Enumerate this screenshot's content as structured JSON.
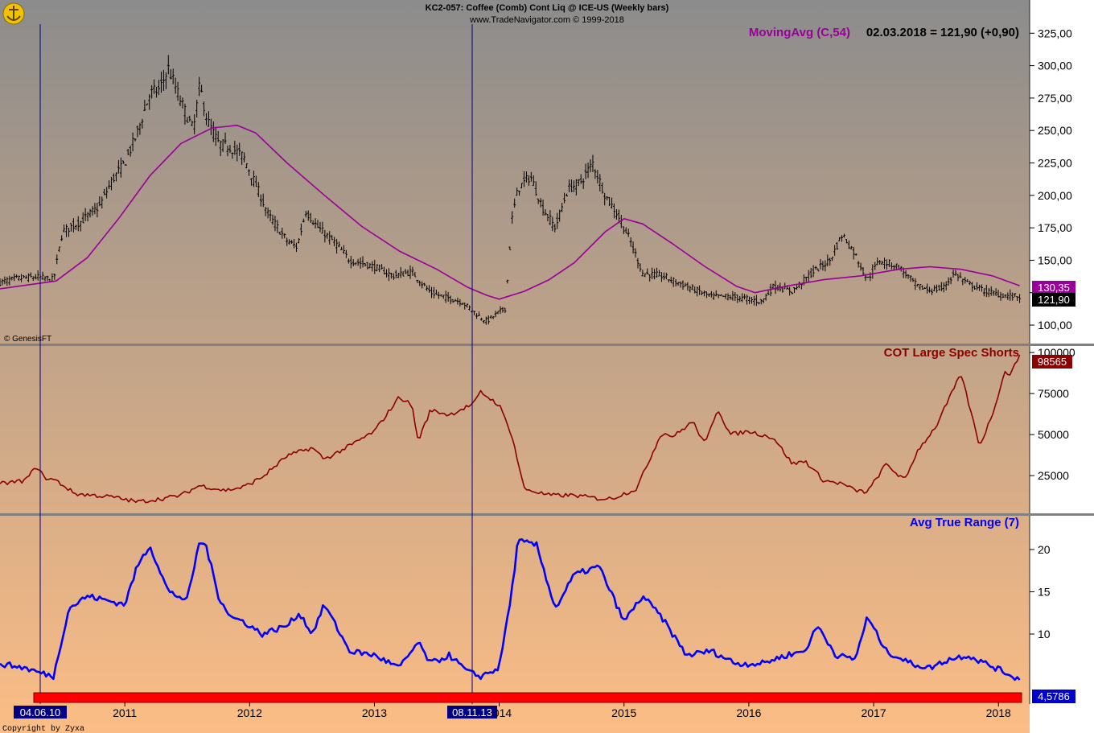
{
  "header": {
    "title": "KC2-057:  Coffee (Comb) Cont Liq @ ICE-US  (Weekly bars)",
    "subtitle": "www.TradeNavigator.com © 1999-2018",
    "credit": "© GenesisFT",
    "copyright": "Copyright by Zyxa"
  },
  "legend": {
    "ma_label": "MovingAvg (C,54)",
    "ma_value_text": "02.03.2018 = 121,90 (+0,90)",
    "cot_label": "COT Large Spec Shorts",
    "atr_label": "Avg True Range (7)"
  },
  "badges": {
    "ma_last": "130,35",
    "price_last": "121,90",
    "cot_last": "98565",
    "atr_last": "4,5786"
  },
  "markers": {
    "first_date": "04.06.10",
    "second_date": "08.11.13"
  },
  "colors": {
    "ma": "#990099",
    "cot": "#8b0000",
    "atr": "#0000ff",
    "price": "#000000",
    "marker_line": "#000080",
    "red_band": "#ff0000",
    "separator": "#808080",
    "grad_top": "#8c8c8c",
    "grad_bottom": "#fcbd85",
    "axis_bg": "#ffffff"
  },
  "chart_data": [
    {
      "type": "line",
      "title": "KC2-057:  Coffee (Comb) Cont Liq @ ICE-US  (Weekly bars)",
      "x_ticks": [
        "2011",
        "2012",
        "2013",
        "2014",
        "2015",
        "2016",
        "2017",
        "2018"
      ],
      "x_tick_years": [
        2011,
        2012,
        2013,
        2014,
        2015,
        2016,
        2017,
        2018
      ],
      "x_range": [
        2010.0,
        2018.25
      ],
      "y_ticks": [
        "100,00",
        "125,00",
        "150,00",
        "175,00",
        "200,00",
        "225,00",
        "250,00",
        "275,00",
        "300,00",
        "325,00"
      ],
      "y_tick_values": [
        100,
        125,
        150,
        175,
        200,
        225,
        250,
        275,
        300,
        325
      ],
      "ylim": [
        87,
        332
      ],
      "series": [
        {
          "name": "Coffee (Comb) Cont Liq",
          "x": [
            2010.0,
            2010.15,
            2010.3,
            2010.43,
            2010.5,
            2010.65,
            2010.8,
            2010.9,
            2011.0,
            2011.1,
            2011.2,
            2011.28,
            2011.35,
            2011.45,
            2011.55,
            2011.6,
            2011.66,
            2011.75,
            2011.85,
            2011.95,
            2012.05,
            2012.15,
            2012.3,
            2012.38,
            2012.45,
            2012.55,
            2012.7,
            2012.8,
            2013.0,
            2013.15,
            2013.3,
            2013.45,
            2013.55,
            2013.7,
            2013.85,
            2013.9,
            2014.0,
            2014.05,
            2014.1,
            2014.15,
            2014.25,
            2014.35,
            2014.45,
            2014.55,
            2014.65,
            2014.75,
            2014.85,
            2014.95,
            2015.05,
            2015.15,
            2015.3,
            2015.5,
            2015.7,
            2015.85,
            2016.0,
            2016.1,
            2016.2,
            2016.35,
            2016.5,
            2016.65,
            2016.75,
            2016.85,
            2016.95,
            2017.05,
            2017.2,
            2017.35,
            2017.45,
            2017.55,
            2017.65,
            2017.75,
            2017.9,
            2018.05,
            2018.17
          ],
          "values": [
            133,
            136,
            137,
            135,
            172,
            180,
            192,
            212,
            225,
            248,
            278,
            282,
            298,
            272,
            250,
            285,
            258,
            240,
            237,
            230,
            208,
            185,
            165,
            160,
            188,
            175,
            162,
            150,
            145,
            138,
            141,
            125,
            122,
            118,
            106,
            103,
            110,
            113,
            180,
            205,
            215,
            190,
            175,
            205,
            210,
            225,
            200,
            185,
            165,
            140,
            138,
            130,
            122,
            122,
            120,
            118,
            130,
            126,
            140,
            150,
            170,
            155,
            135,
            150,
            145,
            130,
            127,
            128,
            140,
            132,
            126,
            123,
            121.9
          ]
        },
        {
          "name": "MovingAvg (C,54)",
          "x": [
            2010.0,
            2010.3,
            2010.45,
            2010.7,
            2010.95,
            2011.2,
            2011.45,
            2011.7,
            2011.9,
            2012.05,
            2012.3,
            2012.6,
            2012.9,
            2013.2,
            2013.5,
            2013.75,
            2013.9,
            2014.0,
            2014.2,
            2014.4,
            2014.6,
            2014.85,
            2015.0,
            2015.15,
            2015.4,
            2015.65,
            2015.9,
            2016.05,
            2016.3,
            2016.6,
            2016.9,
            2017.2,
            2017.45,
            2017.7,
            2017.95,
            2018.17
          ],
          "values": [
            128,
            132,
            134,
            152,
            182,
            215,
            240,
            252,
            254,
            248,
            225,
            200,
            176,
            157,
            143,
            129,
            123,
            120,
            126,
            135,
            148,
            172,
            182,
            178,
            162,
            145,
            130,
            125,
            130,
            135,
            138,
            143,
            145,
            143,
            138,
            130.35
          ]
        }
      ]
    },
    {
      "type": "line",
      "title": "COT Large Spec Shorts",
      "x_ticks": [
        "2011",
        "2012",
        "2013",
        "2014",
        "2015",
        "2016",
        "2017",
        "2018"
      ],
      "y_ticks": [
        "25000",
        "50000",
        "75000",
        "100000"
      ],
      "y_tick_values": [
        25000,
        50000,
        75000,
        100000
      ],
      "ylim": [
        3000,
        103000
      ],
      "series": [
        {
          "name": "COT Large Spec Shorts",
          "x": [
            2010.0,
            2010.2,
            2010.3,
            2010.35,
            2010.45,
            2010.6,
            2010.9,
            2011.1,
            2011.3,
            2011.45,
            2011.6,
            2011.8,
            2011.95,
            2012.1,
            2012.3,
            2012.5,
            2012.6,
            2012.8,
            2013.0,
            2013.2,
            2013.3,
            2013.35,
            2013.45,
            2013.6,
            2013.8,
            2013.85,
            2014.0,
            2014.1,
            2014.2,
            2014.4,
            2014.6,
            2014.8,
            2014.9,
            2015.1,
            2015.3,
            2015.4,
            2015.55,
            2015.65,
            2015.75,
            2015.85,
            2016.0,
            2016.2,
            2016.35,
            2016.45,
            2016.6,
            2016.75,
            2016.85,
            2016.95,
            2017.1,
            2017.25,
            2017.35,
            2017.5,
            2017.7,
            2017.85,
            2017.95,
            2018.05,
            2018.1,
            2018.17
          ],
          "values": [
            20000,
            22000,
            31000,
            24000,
            22000,
            14000,
            12000,
            9000,
            11000,
            13000,
            19000,
            16000,
            18000,
            24000,
            37000,
            42000,
            35000,
            43000,
            52000,
            73000,
            68000,
            46000,
            65000,
            62000,
            69000,
            76000,
            68000,
            50000,
            17000,
            13000,
            13000,
            11000,
            11000,
            17000,
            51000,
            49000,
            58000,
            44000,
            66000,
            50000,
            52000,
            48000,
            32000,
            34000,
            22000,
            20000,
            16000,
            15000,
            32000,
            22000,
            40000,
            55000,
            87000,
            43000,
            62000,
            88000,
            87000,
            98565
          ]
        }
      ]
    },
    {
      "type": "line",
      "title": "Avg True Range (7)",
      "x_ticks": [
        "2011",
        "2012",
        "2013",
        "2014",
        "2015",
        "2016",
        "2017",
        "2018"
      ],
      "y_ticks": [
        "10",
        "15",
        "20"
      ],
      "y_tick_values": [
        10,
        15,
        20
      ],
      "ylim": [
        2.2,
        23.8
      ],
      "series": [
        {
          "name": "Avg True Range (7)",
          "x": [
            2010.0,
            2010.2,
            2010.3,
            2010.43,
            2010.55,
            2010.7,
            2010.85,
            2011.0,
            2011.1,
            2011.2,
            2011.35,
            2011.5,
            2011.6,
            2011.65,
            2011.75,
            2011.85,
            2011.95,
            2012.1,
            2012.3,
            2012.4,
            2012.5,
            2012.6,
            2012.8,
            2013.0,
            2013.2,
            2013.35,
            2013.45,
            2013.6,
            2013.75,
            2013.85,
            2014.0,
            2014.1,
            2014.15,
            2014.3,
            2014.45,
            2014.6,
            2014.8,
            2015.0,
            2015.15,
            2015.3,
            2015.5,
            2015.7,
            2015.9,
            2016.1,
            2016.3,
            2016.45,
            2016.55,
            2016.7,
            2016.85,
            2016.95,
            2017.1,
            2017.3,
            2017.45,
            2017.6,
            2017.75,
            2017.9,
            2018.05,
            2018.17
          ],
          "values": [
            6.5,
            6.0,
            5.5,
            5.0,
            13.0,
            14.5,
            14.0,
            13.5,
            18.0,
            20.5,
            15.0,
            14.0,
            21.0,
            20.5,
            14.5,
            12.0,
            11.5,
            10.0,
            11.0,
            12.5,
            10.0,
            13.5,
            8.0,
            7.5,
            6.0,
            9.0,
            6.5,
            7.5,
            5.5,
            5.0,
            6.0,
            15.0,
            21.0,
            20.5,
            13.0,
            17.0,
            18.0,
            11.5,
            14.5,
            12.0,
            7.5,
            8.0,
            6.5,
            6.5,
            7.5,
            8.0,
            11.0,
            7.5,
            7.0,
            12.0,
            8.0,
            6.5,
            6.0,
            7.0,
            7.5,
            6.5,
            5.5,
            4.5786
          ]
        }
      ]
    }
  ]
}
